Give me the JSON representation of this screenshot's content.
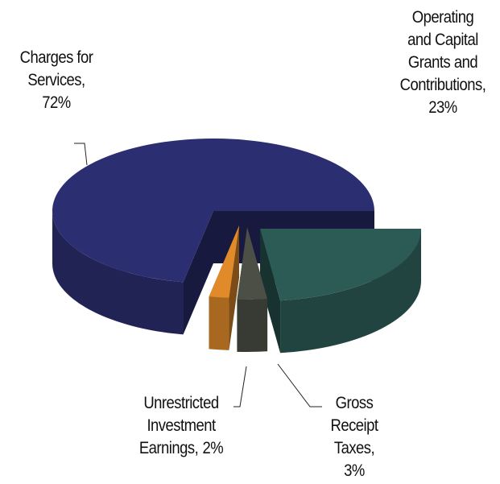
{
  "chart_data": {
    "type": "pie3d",
    "categories": [
      "Charges for\nServices,",
      "Operating\nand Capital\nGrants and\nContributions,",
      "Gross\nReceipt\nTaxes,",
      "Unrestricted\nInvestment\nEarnings,"
    ],
    "values": [
      72,
      23,
      3,
      2
    ],
    "value_labels": [
      "72%",
      "23%",
      "3%",
      "2%"
    ],
    "colors": [
      "#2b2e70",
      "#2c5b55",
      "#4b4f45",
      "#e08a2a"
    ]
  }
}
